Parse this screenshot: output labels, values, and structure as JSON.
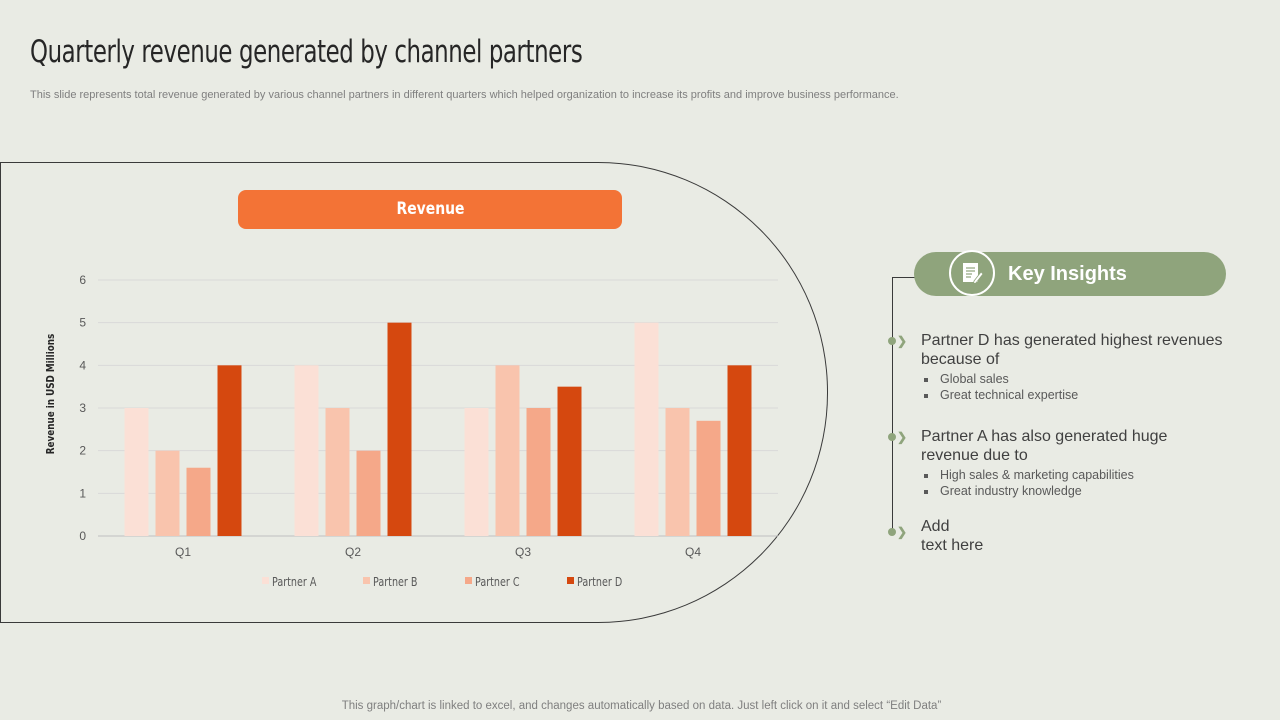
{
  "slide": {
    "title": "Quarterly revenue generated by channel partners",
    "subtitle": "This slide represents total revenue generated by various channel partners in different quarters which helped organization to increase its profits and improve business performance.",
    "footer": "This graph/chart is linked to excel, and changes automatically based on data. Just left click on it and select “Edit Data”"
  },
  "chart_banner": {
    "label": "Revenue"
  },
  "chart_data": {
    "type": "bar",
    "title": "",
    "xlabel": "",
    "ylabel": "Revenue in USD Millions",
    "categories": [
      "Q1",
      "Q2",
      "Q3",
      "Q4"
    ],
    "ylim": [
      0,
      6
    ],
    "yticks": [
      0,
      1,
      2,
      3,
      4,
      5,
      6
    ],
    "grid": true,
    "legend_position": "bottom",
    "series": [
      {
        "name": "Partner A",
        "color": "#fbe0d6",
        "values": [
          3,
          4,
          3,
          5
        ]
      },
      {
        "name": "Partner B",
        "color": "#f9c4ad",
        "values": [
          2,
          3,
          4,
          3
        ]
      },
      {
        "name": "Partner C",
        "color": "#f5a889",
        "values": [
          1.6,
          2,
          3,
          2.7
        ]
      },
      {
        "name": "Partner D",
        "color": "#d5480f",
        "values": [
          4,
          5,
          3.5,
          4
        ]
      }
    ]
  },
  "insights": {
    "title": "Key Insights",
    "icon": "document-edit-icon",
    "points": [
      {
        "heading_line1": "Partner D has generated highest revenues",
        "heading_line2": "because of",
        "bullets": [
          "Global sales",
          "Great technical expertise"
        ]
      },
      {
        "heading_line1": "Partner A has also generated huge",
        "heading_line2": "revenue due to",
        "bullets": [
          "High sales & marketing capabilities",
          "Great industry knowledge"
        ]
      },
      {
        "heading_line1": "Add",
        "heading_line2": "text here",
        "bullets": []
      }
    ]
  },
  "colors": {
    "background": "#e9ebe4",
    "accent_orange": "#f37336",
    "accent_green": "#8fa47c"
  }
}
